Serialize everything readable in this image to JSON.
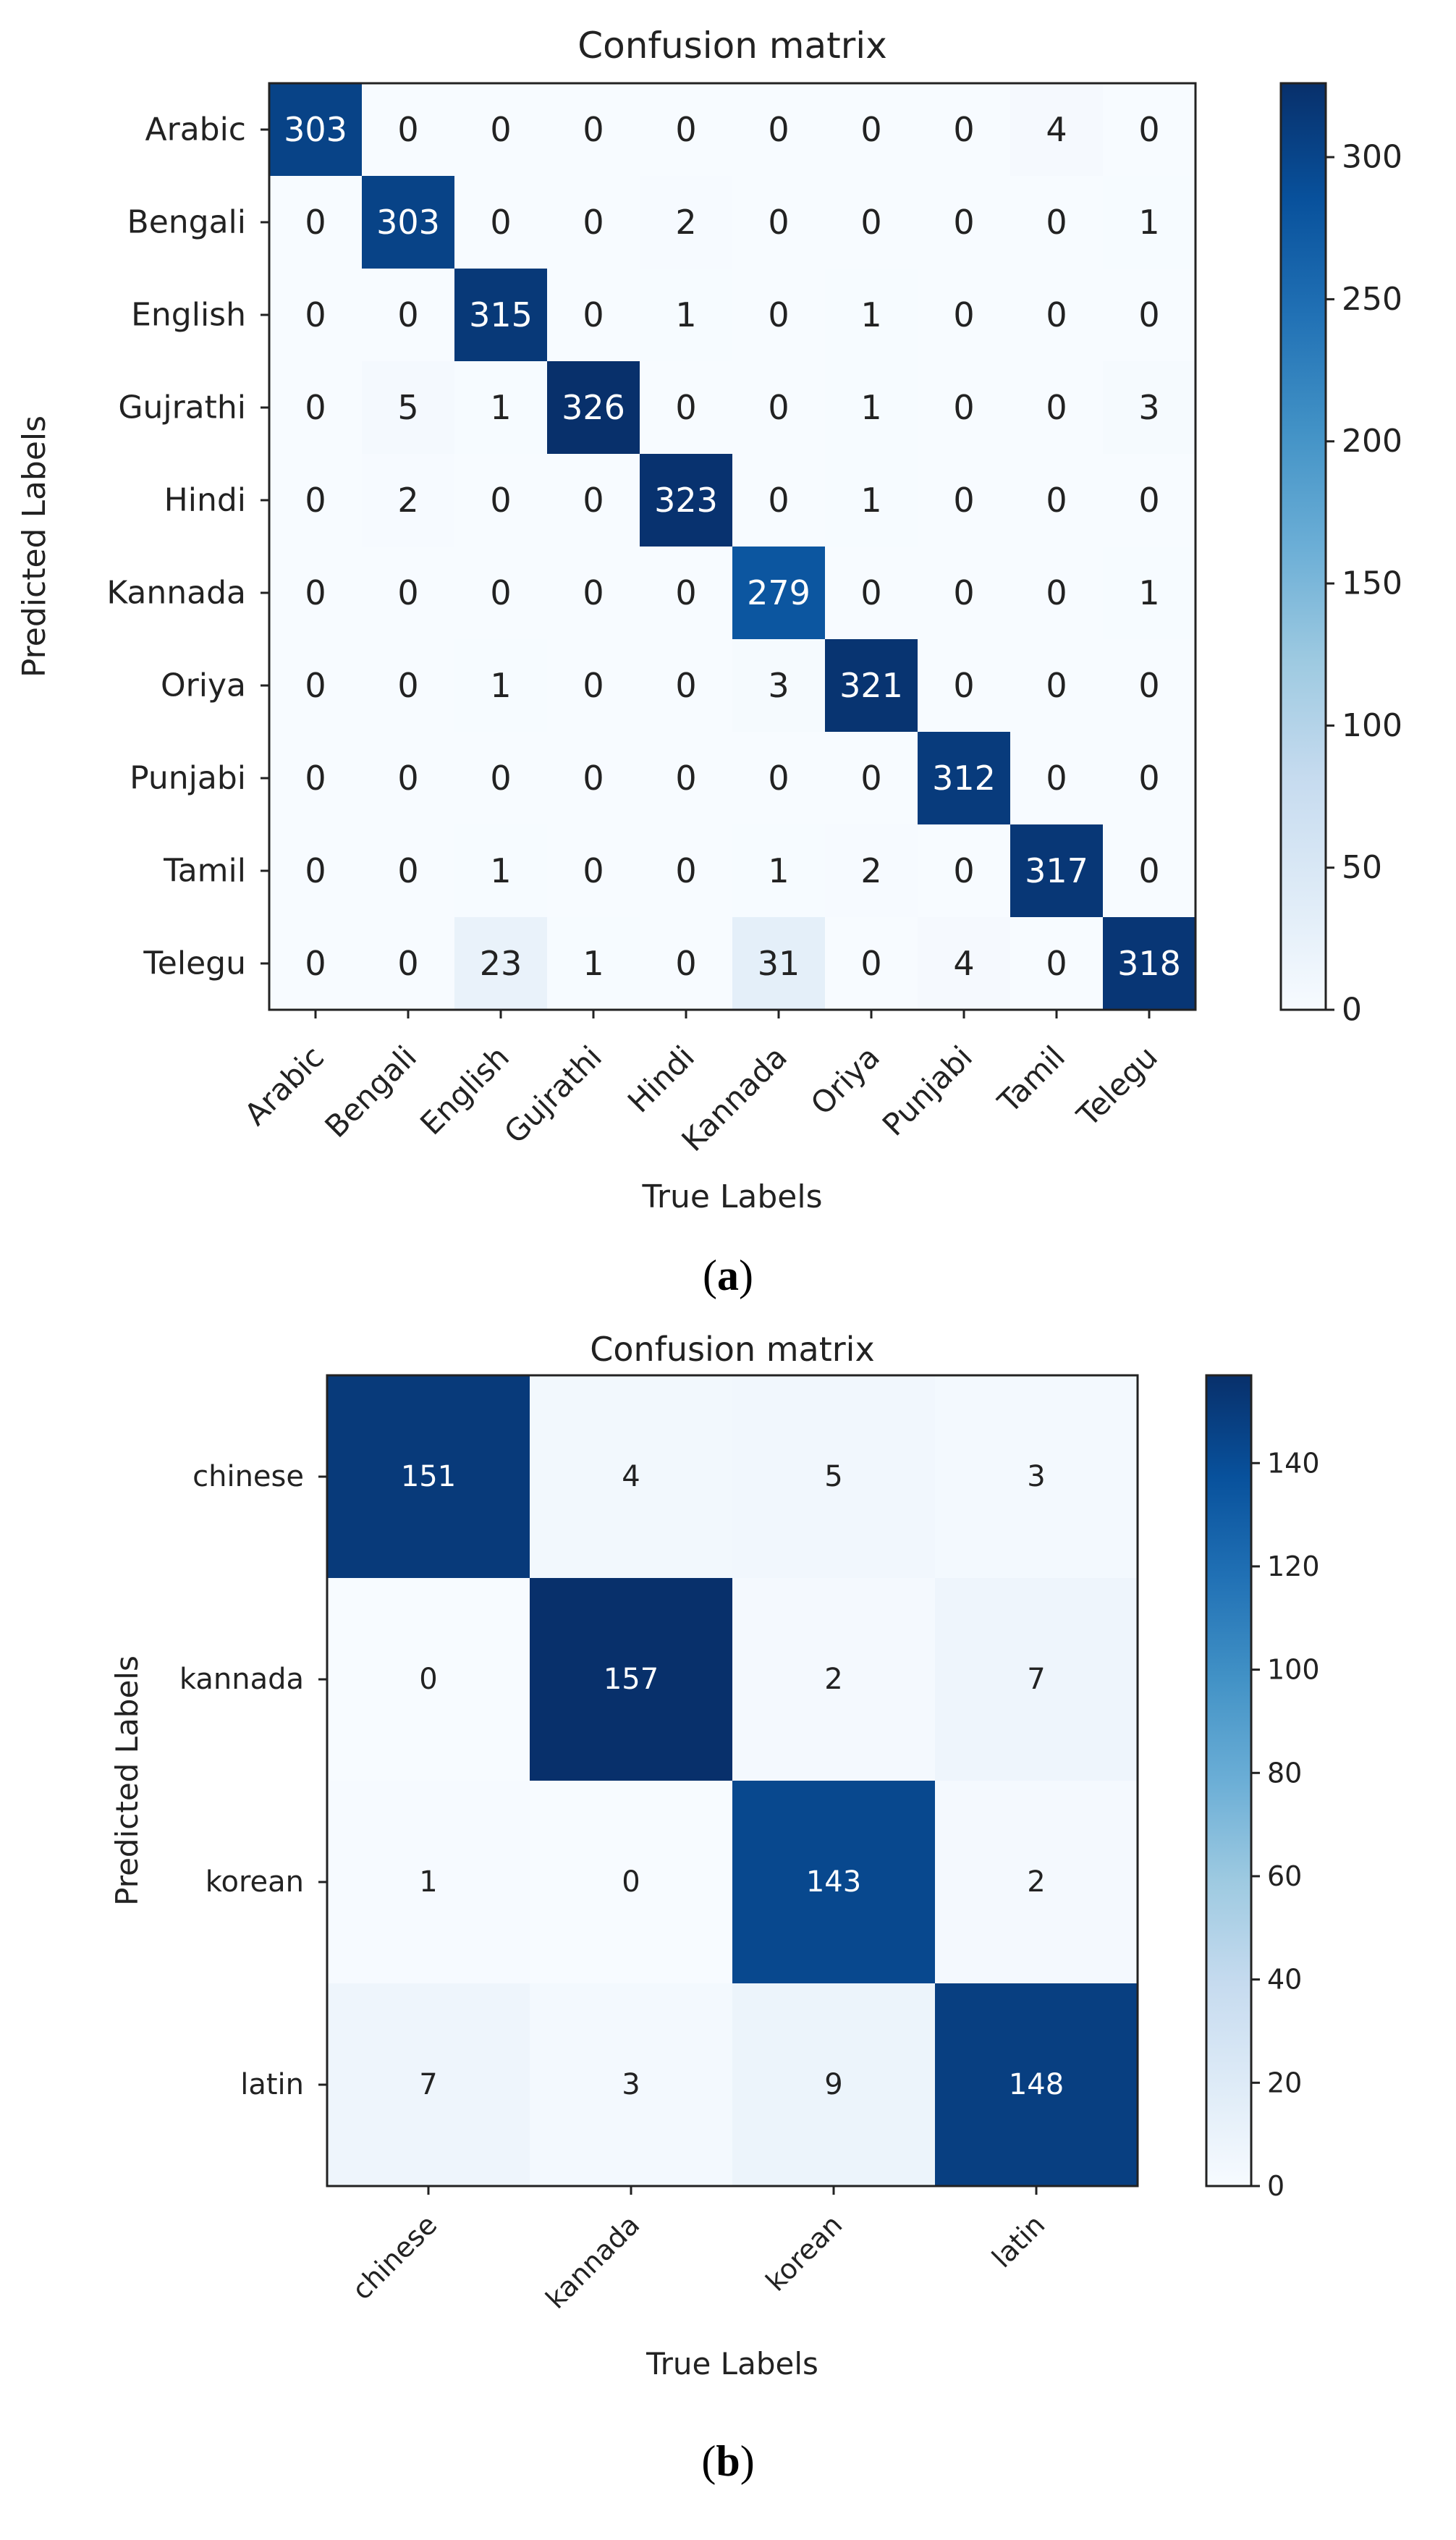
{
  "panels": [
    {
      "caption": "(a)",
      "caption_letter": "a",
      "chart_data": {
        "type": "heatmap",
        "title": "Confusion matrix",
        "xlabel": "True Labels",
        "ylabel": "Predicted Labels",
        "x_categories": [
          "Arabic",
          "Bengali",
          "English",
          "Gujrathi",
          "Hindi",
          "Kannada",
          "Oriya",
          "Punjabi",
          "Tamil",
          "Telegu"
        ],
        "y_categories": [
          "Arabic",
          "Bengali",
          "English",
          "Gujrathi",
          "Hindi",
          "Kannada",
          "Oriya",
          "Punjabi",
          "Tamil",
          "Telegu"
        ],
        "values": [
          [
            303,
            0,
            0,
            0,
            0,
            0,
            0,
            0,
            4,
            0
          ],
          [
            0,
            303,
            0,
            0,
            2,
            0,
            0,
            0,
            0,
            1
          ],
          [
            0,
            0,
            315,
            0,
            1,
            0,
            1,
            0,
            0,
            0
          ],
          [
            0,
            5,
            1,
            326,
            0,
            0,
            1,
            0,
            0,
            3
          ],
          [
            0,
            2,
            0,
            0,
            323,
            0,
            1,
            0,
            0,
            0
          ],
          [
            0,
            0,
            0,
            0,
            0,
            279,
            0,
            0,
            0,
            1
          ],
          [
            0,
            0,
            1,
            0,
            0,
            3,
            321,
            0,
            0,
            0
          ],
          [
            0,
            0,
            0,
            0,
            0,
            0,
            0,
            312,
            0,
            0
          ],
          [
            0,
            0,
            1,
            0,
            0,
            1,
            2,
            0,
            317,
            0
          ],
          [
            0,
            0,
            23,
            1,
            0,
            31,
            0,
            4,
            0,
            318
          ]
        ],
        "color_range": [
          0,
          326
        ],
        "colorbar_ticks": [
          0,
          50,
          100,
          150,
          200,
          250,
          300
        ]
      }
    },
    {
      "caption": "(b)",
      "caption_letter": "b",
      "chart_data": {
        "type": "heatmap",
        "title": "Confusion matrix",
        "xlabel": "True Labels",
        "ylabel": "Predicted Labels",
        "x_categories": [
          "chinese",
          "kannada",
          "korean",
          "latin"
        ],
        "y_categories": [
          "chinese",
          "kannada",
          "korean",
          "latin"
        ],
        "values": [
          [
            151,
            4,
            5,
            3
          ],
          [
            0,
            157,
            2,
            7
          ],
          [
            1,
            0,
            143,
            2
          ],
          [
            7,
            3,
            9,
            148
          ]
        ],
        "color_range": [
          0,
          157
        ],
        "colorbar_ticks": [
          0,
          20,
          40,
          60,
          80,
          100,
          120,
          140
        ]
      }
    }
  ],
  "colors": {
    "cmap": [
      "#f7fbff",
      "#deebf7",
      "#c6dbef",
      "#9ecae1",
      "#6baed6",
      "#4292c6",
      "#2171b5",
      "#08519c",
      "#08306b"
    ],
    "axis": "#222222",
    "light_text": "#ffffff",
    "dark_text": "#222222"
  }
}
